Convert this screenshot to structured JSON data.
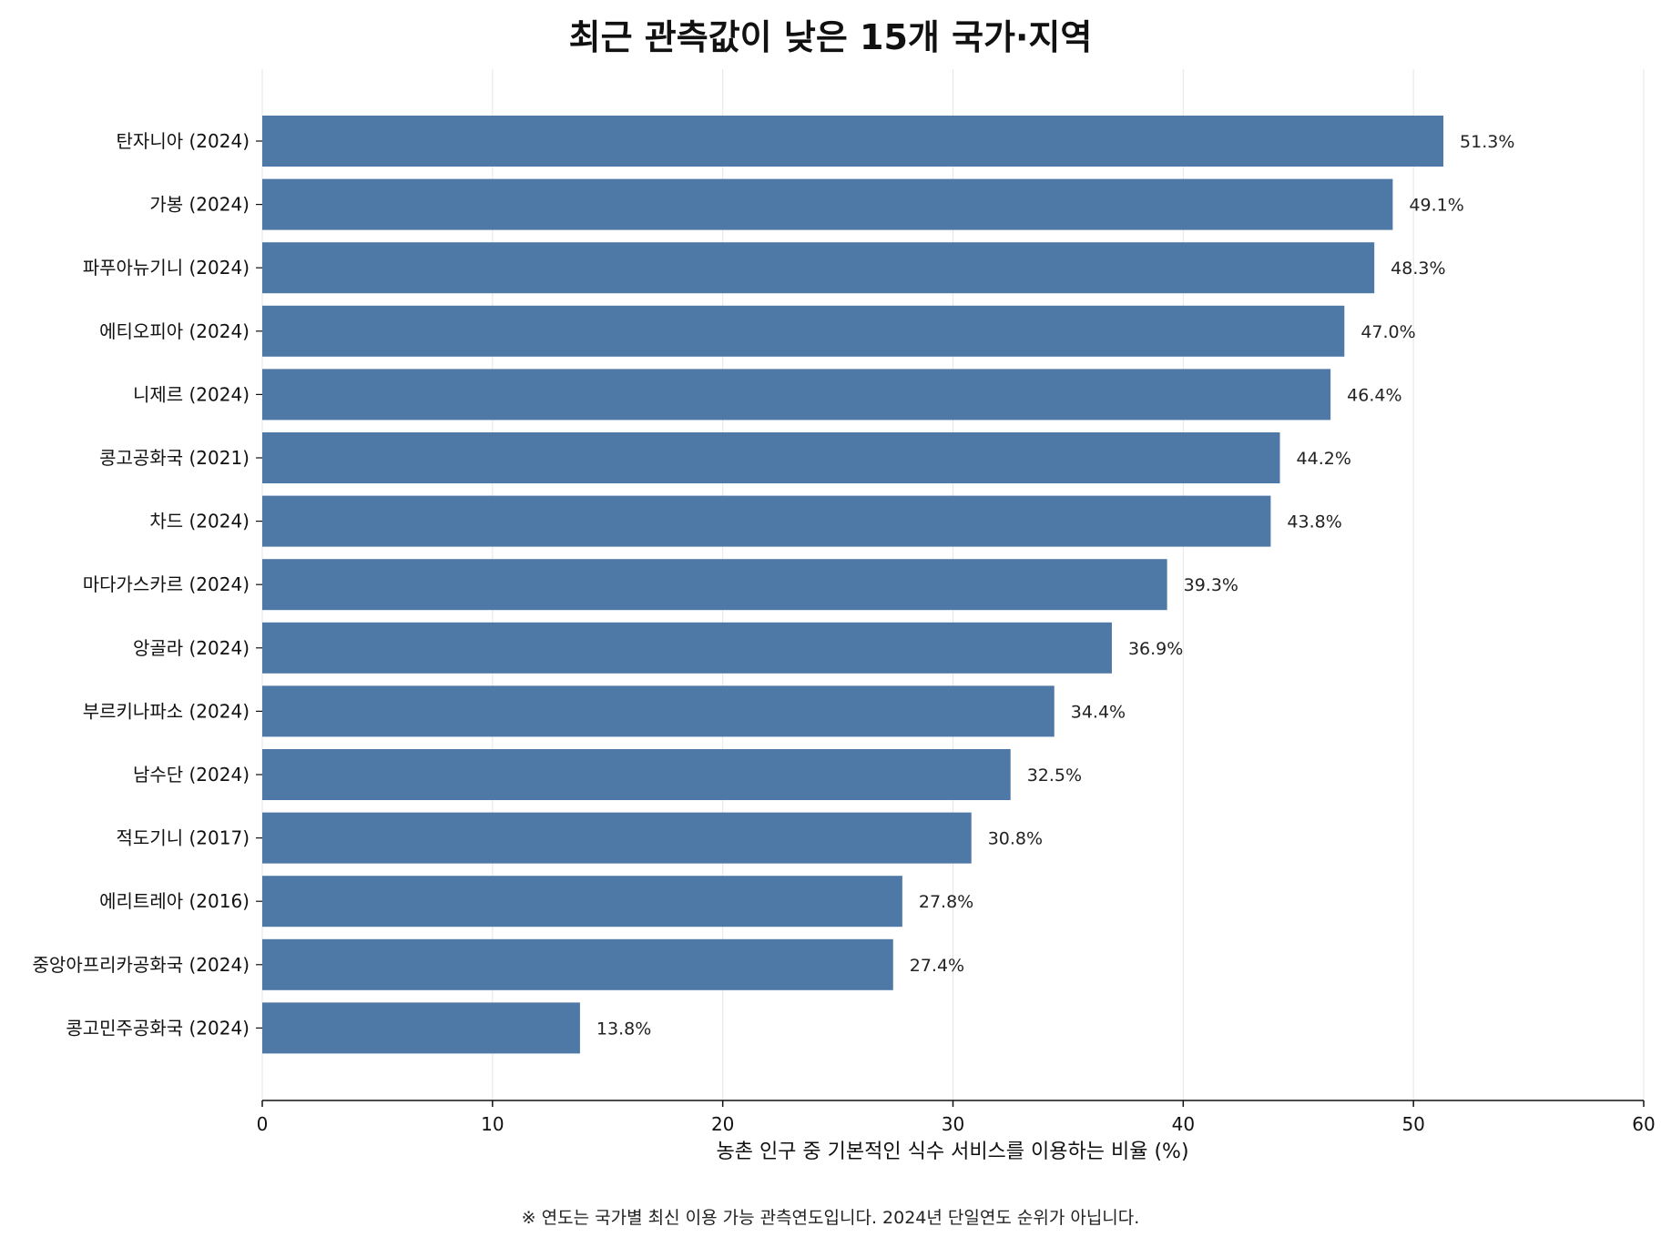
{
  "chart_data": {
    "type": "bar",
    "orientation": "horizontal",
    "title": "최근 관측값이 낮은 15개 국가·지역",
    "xlabel": "농촌 인구 중 기본적인 식수 서비스를 이용하는 비율 (%)",
    "ylabel": "",
    "xlim": [
      0,
      60
    ],
    "xticks": [
      0,
      10,
      20,
      30,
      40,
      50,
      60
    ],
    "grid": "vertical",
    "bar_color": "#4e79a7",
    "categories": [
      "탄자니아 (2024)",
      "가봉 (2024)",
      "파푸아뉴기니 (2024)",
      "에티오피아 (2024)",
      "니제르 (2024)",
      "콩고공화국 (2021)",
      "차드 (2024)",
      "마다가스카르 (2024)",
      "앙골라 (2024)",
      "부르키나파소 (2024)",
      "남수단 (2024)",
      "적도기니 (2017)",
      "에리트레아 (2016)",
      "중앙아프리카공화국 (2024)",
      "콩고민주공화국 (2024)"
    ],
    "values": [
      51.3,
      49.1,
      48.3,
      47.0,
      46.4,
      44.2,
      43.8,
      39.3,
      36.9,
      34.4,
      32.5,
      30.8,
      27.8,
      27.4,
      13.8
    ],
    "data_labels": [
      "51.3%",
      "49.1%",
      "48.3%",
      "47.0%",
      "46.4%",
      "44.2%",
      "43.8%",
      "39.3%",
      "36.9%",
      "34.4%",
      "32.5%",
      "30.8%",
      "27.8%",
      "27.4%",
      "13.8%"
    ]
  },
  "footnote": "※ 연도는 국가별 최신 이용 가능 관측연도입니다. 2024년 단일연도 순위가 아닙니다."
}
